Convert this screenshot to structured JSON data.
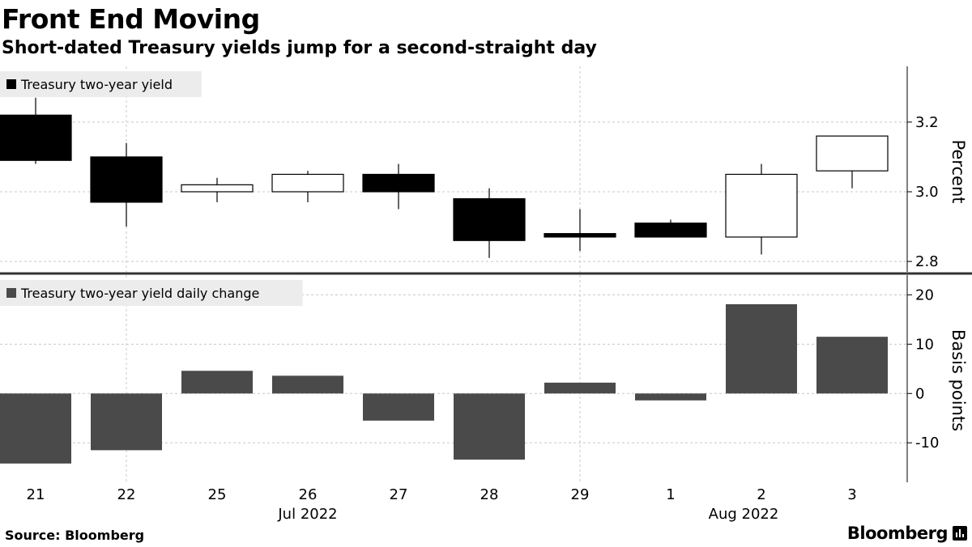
{
  "title": "Front End Moving",
  "subtitle": "Short-dated Treasury yields jump for a second-straight day",
  "source": "Source: Bloomberg",
  "brand": "Bloomberg",
  "colors": {
    "bear_candle": "#000000",
    "bull_candle": "#ffffff",
    "bar": "#4a4a4a",
    "grid": "#c8c8c8",
    "legend_bg": "#ececec"
  },
  "chart_data": [
    {
      "type": "candlestick",
      "legend": "Treasury two-year yield",
      "ylabel": "Percent",
      "ylim": [
        2.77,
        3.36
      ],
      "yticks": [
        2.8,
        3.0,
        3.2
      ],
      "ytick_labels": [
        "2.8",
        "3.0",
        "3.2"
      ],
      "categories": [
        "21",
        "22",
        "25",
        "26",
        "27",
        "28",
        "29",
        "1",
        "2",
        "3"
      ],
      "open": [
        3.22,
        3.1,
        3.0,
        3.0,
        3.05,
        2.98,
        2.88,
        2.91,
        2.87,
        3.06
      ],
      "high": [
        3.27,
        3.14,
        3.04,
        3.06,
        3.08,
        3.01,
        2.95,
        2.92,
        3.08,
        3.16
      ],
      "low": [
        3.08,
        2.9,
        2.97,
        2.97,
        2.95,
        2.81,
        2.83,
        2.87,
        2.82,
        3.01
      ],
      "close": [
        3.09,
        2.97,
        3.02,
        3.05,
        3.0,
        2.86,
        2.87,
        2.87,
        3.05,
        3.16
      ],
      "grid": true,
      "legend_position": "top-left"
    },
    {
      "type": "bar",
      "legend": "Treasury two-year yield daily change",
      "ylabel": "Basis points",
      "ylim": [
        -18,
        24
      ],
      "yticks": [
        -10,
        0,
        10,
        20
      ],
      "ytick_labels": [
        "-10",
        "0",
        "10",
        "20"
      ],
      "categories": [
        "21",
        "22",
        "25",
        "26",
        "27",
        "28",
        "29",
        "1",
        "2",
        "3"
      ],
      "values": [
        -14.2,
        -11.5,
        4.6,
        3.6,
        -5.5,
        -13.4,
        2.2,
        -1.4,
        18.1,
        11.5
      ],
      "grid": true,
      "legend_position": "top-left"
    }
  ],
  "x_axis": {
    "day_labels": [
      "21",
      "22",
      "25",
      "26",
      "27",
      "28",
      "29",
      "1",
      "2",
      "3"
    ],
    "month_labels": [
      "Jul 2022",
      "Aug 2022"
    ]
  }
}
